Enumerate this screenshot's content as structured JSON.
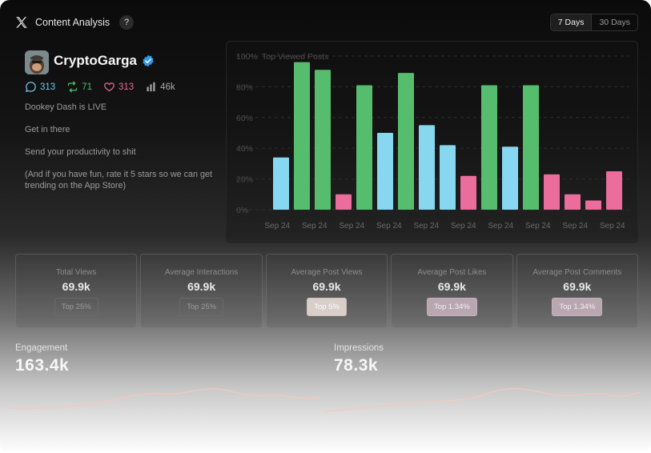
{
  "header": {
    "title": "Content Analysis",
    "help": "?",
    "ranges": [
      "7 Days",
      "30 Days"
    ],
    "active_range": "7 Days"
  },
  "profile": {
    "name": "CryptoGarga",
    "stats": {
      "comments": "313",
      "reposts": "71",
      "likes": "313",
      "views": "46k"
    },
    "tweet": [
      "Dookey Dash is LIVE",
      "Get in there",
      "Send your productivity to shit",
      "(And if you have fun, rate it 5 stars so we can get trending on the App Store)"
    ]
  },
  "colors": {
    "blue": "#86d7ef",
    "green": "#56bd6e",
    "pink": "#ea6d9c"
  },
  "chart_data": {
    "type": "bar",
    "title": "Top Viewed Posts",
    "y_ticks": [
      "100%",
      "80%",
      "60%",
      "40%",
      "20%",
      "0%"
    ],
    "ylim": [
      0,
      100
    ],
    "x_labels": [
      "Sep 24",
      "Sep 24",
      "Sep 24",
      "Sep 24",
      "Sep 24",
      "Sep 24",
      "Sep 24",
      "Sep 24",
      "Sep 24",
      "Sep 24"
    ],
    "values": [
      34,
      96,
      91,
      10,
      81,
      50,
      89,
      55,
      42,
      22,
      81,
      41,
      81,
      23,
      10,
      6,
      25
    ],
    "bar_colors": [
      "blue",
      "green",
      "green",
      "pink",
      "green",
      "blue",
      "green",
      "blue",
      "blue",
      "pink",
      "green",
      "blue",
      "green",
      "pink",
      "pink",
      "pink",
      "pink"
    ]
  },
  "metrics": [
    {
      "label": "Total Views",
      "value": "69.9k",
      "badge": "Top 25%",
      "tone": "plain"
    },
    {
      "label": "Average Interactions",
      "value": "69.9k",
      "badge": "Top 25%",
      "tone": "plain"
    },
    {
      "label": "Average Post Views",
      "value": "69.9k",
      "badge": "Top 5%",
      "tone": "warm"
    },
    {
      "label": "Average Post Likes",
      "value": "69.9k",
      "badge": "Top 1.34%",
      "tone": "hot"
    },
    {
      "label": "Average Post Comments",
      "value": "69.9k",
      "badge": "Top 1.34%",
      "tone": "hot"
    }
  ],
  "engagement": {
    "label": "Engagement",
    "value": "163.4k"
  },
  "impressions": {
    "label": "Impressions",
    "value": "78.3k"
  }
}
